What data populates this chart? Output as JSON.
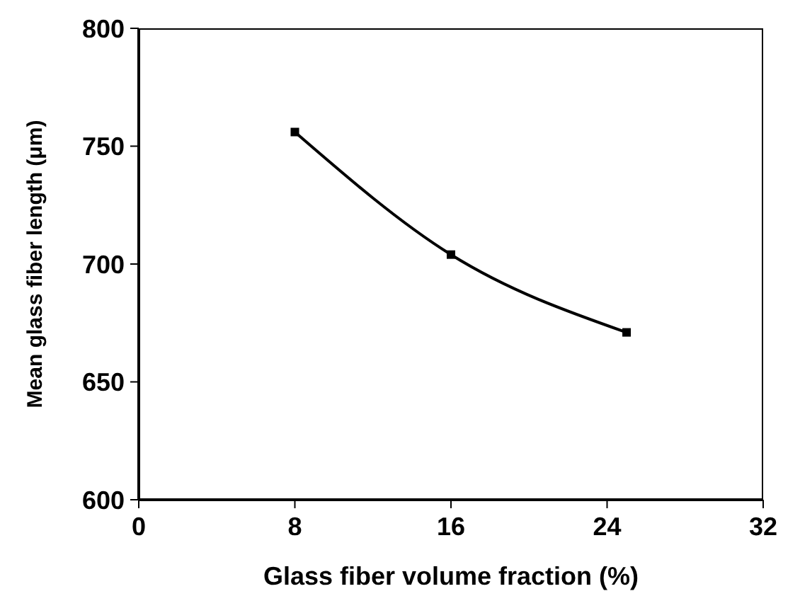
{
  "chart_data": {
    "type": "line",
    "xlabel": "Glass fiber volume fraction (%)",
    "ylabel": "Mean glass fiber length (μm)",
    "x": [
      8,
      16,
      25
    ],
    "series": [
      {
        "color": "#000000",
        "values": [
          756,
          704,
          671
        ]
      }
    ],
    "xlim": [
      0,
      32
    ],
    "xticks": [
      0,
      8,
      16,
      24,
      32
    ],
    "ylim": [
      600,
      800
    ],
    "yticks": [
      600,
      650,
      700,
      750,
      800
    ],
    "marker": "square",
    "line_style": "solid"
  }
}
